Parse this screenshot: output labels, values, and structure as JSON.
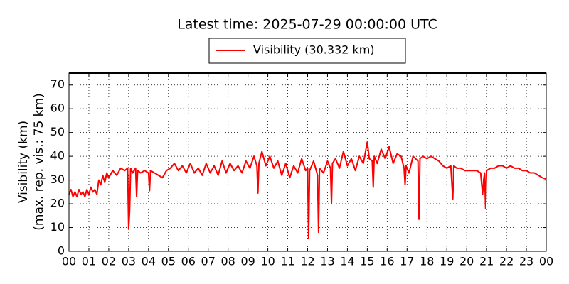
{
  "chart_data": {
    "type": "line",
    "title": "Latest time: 2025-07-29 00:00:00 UTC",
    "ylabel": [
      "Visibility (km)",
      "(max. rep. vis.: 75 km)"
    ],
    "xlim": [
      0,
      24
    ],
    "ylim": [
      0,
      75
    ],
    "grid": true,
    "legend": "top",
    "xticks": [
      {
        "value": 0,
        "label": "00"
      },
      {
        "value": 1,
        "label": "01"
      },
      {
        "value": 2,
        "label": "02"
      },
      {
        "value": 3,
        "label": "03"
      },
      {
        "value": 4,
        "label": "04"
      },
      {
        "value": 5,
        "label": "05"
      },
      {
        "value": 6,
        "label": "06"
      },
      {
        "value": 7,
        "label": "07"
      },
      {
        "value": 8,
        "label": "08"
      },
      {
        "value": 9,
        "label": "09"
      },
      {
        "value": 10,
        "label": "10"
      },
      {
        "value": 11,
        "label": "11"
      },
      {
        "value": 12,
        "label": "12"
      },
      {
        "value": 13,
        "label": "13"
      },
      {
        "value": 14,
        "label": "14"
      },
      {
        "value": 15,
        "label": "15"
      },
      {
        "value": 16,
        "label": "16"
      },
      {
        "value": 17,
        "label": "17"
      },
      {
        "value": 18,
        "label": "18"
      },
      {
        "value": 19,
        "label": "19"
      },
      {
        "value": 20,
        "label": "20"
      },
      {
        "value": 21,
        "label": "21"
      },
      {
        "value": 22,
        "label": "22"
      },
      {
        "value": 23,
        "label": "23"
      },
      {
        "value": 24,
        "label": "00"
      }
    ],
    "yticks": [
      0,
      10,
      20,
      30,
      40,
      50,
      60,
      70
    ],
    "x": [
      0,
      0.1,
      0.2,
      0.3,
      0.4,
      0.5,
      0.6,
      0.7,
      0.8,
      0.9,
      1.0,
      1.1,
      1.2,
      1.3,
      1.4,
      1.5,
      1.6,
      1.7,
      1.8,
      1.9,
      2.0,
      2.2,
      2.4,
      2.6,
      2.8,
      2.95,
      3.0,
      3.05,
      3.1,
      3.2,
      3.35,
      3.4,
      3.45,
      3.6,
      3.8,
      4.0,
      4.05,
      4.1,
      4.3,
      4.5,
      4.7,
      4.9,
      5.1,
      5.3,
      5.5,
      5.7,
      5.9,
      6.1,
      6.3,
      6.5,
      6.7,
      6.9,
      7.1,
      7.3,
      7.5,
      7.7,
      7.9,
      8.1,
      8.3,
      8.5,
      8.7,
      8.9,
      9.1,
      9.3,
      9.45,
      9.5,
      9.55,
      9.7,
      9.9,
      10.1,
      10.3,
      10.5,
      10.7,
      10.9,
      11.1,
      11.3,
      11.5,
      11.7,
      11.9,
      12.0,
      12.05,
      12.1,
      12.3,
      12.5,
      12.55,
      12.6,
      12.8,
      13.0,
      13.15,
      13.2,
      13.25,
      13.4,
      13.6,
      13.8,
      14.0,
      14.2,
      14.4,
      14.6,
      14.8,
      15.0,
      15.1,
      15.25,
      15.3,
      15.35,
      15.5,
      15.7,
      15.9,
      16.1,
      16.3,
      16.5,
      16.7,
      16.85,
      16.9,
      16.95,
      17.1,
      17.3,
      17.55,
      17.6,
      17.65,
      17.8,
      18.0,
      18.2,
      18.4,
      18.6,
      18.8,
      19.0,
      19.2,
      19.3,
      19.35,
      19.5,
      19.7,
      19.9,
      20.1,
      20.3,
      20.5,
      20.7,
      20.8,
      20.85,
      20.9,
      20.95,
      21.0,
      21.2,
      21.4,
      21.6,
      21.8,
      22.0,
      22.2,
      22.4,
      22.6,
      22.8,
      23.0,
      23.2,
      23.4,
      23.6,
      23.8,
      24.0
    ],
    "series": [
      {
        "name": "Visibility (30.332 km)",
        "color": "#ff0000",
        "values": [
          24,
          26,
          23,
          25,
          23,
          26,
          24,
          25,
          23,
          26,
          24,
          27,
          25,
          26,
          24,
          30,
          28,
          32,
          29,
          33,
          31,
          34,
          32,
          35,
          34,
          35,
          9.5,
          17,
          35,
          33,
          35,
          23,
          34,
          33,
          34,
          33,
          25.5,
          34,
          33,
          32,
          31,
          34,
          35,
          37,
          34,
          36,
          33,
          37,
          33,
          35,
          32,
          37,
          33,
          36,
          32,
          38,
          33,
          37,
          34,
          36,
          33,
          38,
          35,
          40,
          36,
          24.5,
          37,
          42,
          36,
          40,
          35,
          38,
          32,
          37,
          31,
          36,
          33,
          39,
          34,
          35,
          5.5,
          34,
          38,
          32,
          8,
          35,
          33,
          38,
          35,
          20,
          37,
          39,
          35,
          42,
          36,
          39,
          34,
          40,
          37,
          46,
          39,
          38,
          27,
          40,
          37,
          43,
          39,
          44,
          37,
          41,
          40,
          35,
          28,
          36,
          33,
          40,
          38,
          13.5,
          39,
          40,
          39,
          40,
          39,
          38,
          36,
          35,
          36,
          22,
          36,
          35,
          35,
          34,
          34,
          34,
          34,
          33,
          24,
          30,
          33,
          18,
          34,
          35,
          35,
          36,
          36,
          35,
          36,
          35,
          35,
          34,
          34,
          33,
          33,
          32,
          31,
          30.332
        ]
      }
    ]
  }
}
